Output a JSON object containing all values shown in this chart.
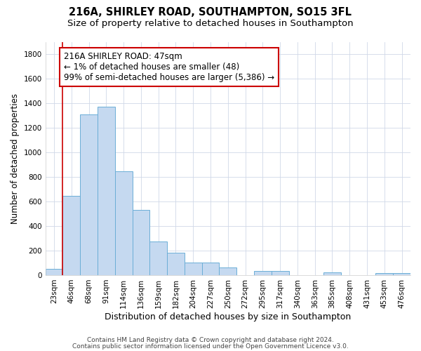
{
  "title_line1": "216A, SHIRLEY ROAD, SOUTHAMPTON, SO15 3FL",
  "title_line2": "Size of property relative to detached houses in Southampton",
  "xlabel": "Distribution of detached houses by size in Southampton",
  "ylabel": "Number of detached properties",
  "bar_color": "#c5d9f0",
  "bar_edge_color": "#6baed6",
  "categories": [
    "23sqm",
    "46sqm",
    "68sqm",
    "91sqm",
    "114sqm",
    "136sqm",
    "159sqm",
    "182sqm",
    "204sqm",
    "227sqm",
    "250sqm",
    "272sqm",
    "295sqm",
    "317sqm",
    "340sqm",
    "363sqm",
    "385sqm",
    "408sqm",
    "431sqm",
    "453sqm",
    "476sqm"
  ],
  "values": [
    50,
    645,
    1310,
    1375,
    845,
    530,
    275,
    185,
    105,
    105,
    62,
    0,
    35,
    35,
    0,
    0,
    20,
    0,
    0,
    15,
    15
  ],
  "ylim": [
    0,
    1900
  ],
  "yticks": [
    0,
    200,
    400,
    600,
    800,
    1000,
    1200,
    1400,
    1600,
    1800
  ],
  "annotation_text": "216A SHIRLEY ROAD: 47sqm\n← 1% of detached houses are smaller (48)\n99% of semi-detached houses are larger (5,386) →",
  "footer_line1": "Contains HM Land Registry data © Crown copyright and database right 2024.",
  "footer_line2": "Contains public sector information licensed under the Open Government Licence v3.0.",
  "bg_color": "#ffffff",
  "plot_bg_color": "#ffffff",
  "grid_color": "#d0d8e8",
  "title1_fontsize": 10.5,
  "title2_fontsize": 9.5,
  "xlabel_fontsize": 9,
  "ylabel_fontsize": 8.5,
  "tick_fontsize": 7.5,
  "footer_fontsize": 6.5,
  "annotation_fontsize": 8.5,
  "annotation_box_color": "#cc0000",
  "vline_color": "#cc0000"
}
